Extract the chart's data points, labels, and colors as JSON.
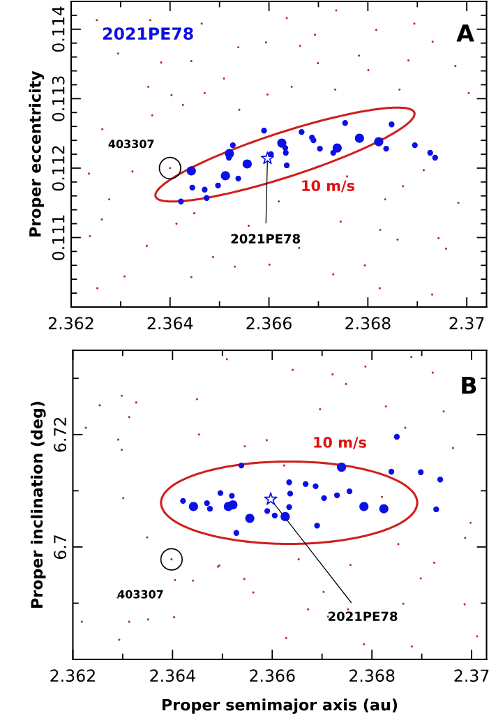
{
  "chart_data": [
    {
      "type": "scatter",
      "title": "2021PE78",
      "ylabel": "Proper eccentricity",
      "xlim": [
        2.362,
        2.3704
      ],
      "ylim": [
        0.11,
        0.1144
      ],
      "xticks": [
        2.362,
        {
          "value": 2.363,
          "label": null
        },
        2.364,
        {
          "value": 2.365,
          "label": null
        },
        2.366,
        {
          "value": 2.367,
          "label": null
        },
        2.368,
        {
          "value": 2.369,
          "label": null
        },
        2.37
      ],
      "yticks": [
        {
          "value": 0.1102,
          "label": null
        },
        {
          "value": 0.1104,
          "label": null
        },
        {
          "value": 0.1106,
          "label": null
        },
        {
          "value": 0.1108,
          "label": null
        },
        0.111,
        {
          "value": 0.1112,
          "label": null
        },
        {
          "value": 0.1114,
          "label": null
        },
        {
          "value": 0.1116,
          "label": null
        },
        {
          "value": 0.1118,
          "label": null
        },
        0.112,
        {
          "value": 0.1122,
          "label": null
        },
        {
          "value": 0.1124,
          "label": null
        },
        {
          "value": 0.1126,
          "label": null
        },
        {
          "value": 0.1128,
          "label": null
        },
        0.113,
        {
          "value": 0.1132,
          "label": null
        },
        {
          "value": 0.1134,
          "label": null
        },
        {
          "value": 0.1136,
          "label": null
        },
        {
          "value": 0.1138,
          "label": null
        },
        0.114,
        {
          "value": 0.1142,
          "label": null
        }
      ],
      "series": [
        {
          "marker": "circle",
          "color": "#b03030",
          "x": [
            2.36252,
            2.3636,
            2.36464,
            2.36295,
            2.36382,
            2.36443,
            2.36538,
            2.36594,
            2.36509,
            2.36356,
            2.36403,
            2.3647,
            2.36597,
            2.36426,
            2.36364,
            2.36263,
            2.3654,
            2.36636,
            2.36736,
            2.36693,
            2.36663,
            2.36699,
            2.36782,
            2.36817,
            2.36894,
            2.36801,
            2.36864,
            2.36882,
            2.36931,
            2.36977,
            2.37004,
            2.36646,
            2.36734,
            2.36236,
            2.36324,
            2.36277,
            2.36262,
            2.36238,
            2.36353,
            2.36413,
            2.36449,
            2.36487,
            2.36443,
            2.36308,
            2.36253,
            2.36531,
            2.36601,
            2.36661,
            2.3662,
            2.36559,
            2.36758,
            2.36745,
            2.3673,
            2.36794,
            2.36825,
            2.36835,
            2.36871,
            2.3686,
            2.36824,
            2.36913,
            2.36943,
            2.36983,
            2.3693,
            2.36958,
            2.364
          ],
          "values": [
            0.11413,
            0.11413,
            0.11408,
            0.11365,
            0.11352,
            0.11354,
            0.11374,
            0.11381,
            0.11329,
            0.11317,
            0.11305,
            0.11308,
            0.11306,
            0.11291,
            0.11276,
            0.11256,
            0.11284,
            0.11416,
            0.11427,
            0.11392,
            0.11376,
            0.11351,
            0.11362,
            0.11399,
            0.11408,
            0.11341,
            0.11313,
            0.11355,
            0.11382,
            0.11347,
            0.11308,
            0.11317,
            0.11313,
            0.11192,
            0.11195,
            0.11155,
            0.11126,
            0.11102,
            0.11088,
            0.1112,
            0.11135,
            0.11072,
            0.11043,
            0.11044,
            0.11027,
            0.11058,
            0.11061,
            0.11085,
            0.11152,
            0.11117,
            0.11188,
            0.11123,
            0.11047,
            0.1106,
            0.11111,
            0.11155,
            0.11174,
            0.11097,
            0.11027,
            0.11197,
            0.11099,
            0.1115,
            0.11018,
            0.11084,
            0.112
          ]
        },
        {
          "type": "bubble",
          "color": "#0a10e6",
          "x": [
            2.3659,
            2.36666,
            2.36687,
            2.3669,
            2.36754,
            2.36783,
            2.36822,
            2.36848,
            2.36895,
            2.36626,
            2.36633,
            2.36738,
            2.36703,
            2.36837,
            2.36527,
            2.3652,
            2.36519,
            2.36604,
            2.36634,
            2.3673,
            2.36926,
            2.36936,
            2.36443,
            2.36556,
            2.36636,
            2.36512,
            2.36538,
            2.36445,
            2.3647,
            2.36497,
            2.36474,
            2.36422
          ],
          "values": [
            0.11254,
            0.11252,
            0.11244,
            0.1124,
            0.11265,
            0.11243,
            0.11238,
            0.11263,
            0.11233,
            0.11236,
            0.11229,
            0.11229,
            0.11228,
            0.11228,
            0.11233,
            0.11221,
            0.11215,
            0.1122,
            0.11222,
            0.11222,
            0.11222,
            0.11215,
            0.11196,
            0.11206,
            0.11204,
            0.11189,
            0.11185,
            0.11172,
            0.11169,
            0.11175,
            0.11157,
            0.11152
          ],
          "sizes": [
            0.4,
            0.4,
            0.4,
            0.4,
            0.4,
            1,
            1,
            0.4,
            0.4,
            1,
            0.4,
            1,
            0.4,
            0.4,
            0.4,
            1,
            0.4,
            0.4,
            0.4,
            0.4,
            0.4,
            0.4,
            1,
            1,
            0.4,
            1,
            0.4,
            0.4,
            0.4,
            0.4,
            0.4,
            0.4
          ]
        },
        {
          "marker": "star",
          "color": "#0a10e6",
          "x": [
            2.36597
          ],
          "values": [
            0.11214
          ]
        }
      ],
      "annotations": [
        "A",
        {
          "text": "403307",
          "x": 2.364,
          "y": 0.112
        },
        {
          "text": "2021PE78",
          "x": 2.36597,
          "y": 0.11214
        },
        "10 m/s"
      ]
    },
    {
      "type": "scatter",
      "xlabel": "Proper semimajor axis (au)",
      "ylabel": "Proper inclination (deg)",
      "xlim": [
        2.362,
        2.3703
      ],
      "ylim": [
        6.68,
        6.735
      ],
      "xticks": [
        2.362,
        {
          "value": 2.363,
          "label": null
        },
        2.364,
        {
          "value": 2.365,
          "label": null
        },
        2.366,
        {
          "value": 2.367,
          "label": null
        },
        2.368,
        {
          "value": 2.369,
          "label": null
        },
        2.37
      ],
      "yticks": [
        {
          "value": 6.69,
          "label": null
        },
        6.7,
        {
          "value": 6.71,
          "label": null
        },
        6.72,
        {
          "value": 6.73,
          "label": null
        }
      ],
      "series": [
        {
          "marker": "circle",
          "color": "#b03030",
          "x": [
            2.36298,
            2.36313,
            2.36327,
            2.36254,
            2.36226,
            2.36291,
            2.36298,
            2.36301,
            2.36349,
            2.36403,
            2.36351,
            2.36313,
            2.36218,
            2.36293,
            2.3629,
            2.36405,
            2.36441,
            2.36494,
            2.36544,
            2.36545,
            2.36453,
            2.36449,
            2.36509,
            2.36641,
            2.36696,
            2.36721,
            2.36748,
            2.36787,
            2.36828,
            2.36879,
            2.36922,
            2.36944,
            2.36867,
            2.36963,
            2.36987,
            2.36998,
            2.36925,
            2.36898,
            2.36863,
            2.3688,
            2.36986,
            2.37011,
            2.36784,
            2.36628,
            2.36672,
            2.36712,
            2.36752,
            2.36653,
            2.36757,
            2.36853,
            2.36703,
            2.36562,
            2.36491,
            2.36589,
            2.36624,
            2.3682,
            2.36398
          ],
          "values": [
            6.7269,
            6.7231,
            6.7257,
            6.7252,
            6.7212,
            6.7191,
            6.7173,
            6.7087,
            6.7017,
            6.6875,
            6.6871,
            6.6867,
            6.6867,
            6.6835,
            6.691,
            6.6941,
            6.694,
            6.6967,
            6.6943,
            6.7179,
            6.72,
            6.7263,
            6.7334,
            6.7315,
            6.7245,
            6.7307,
            6.729,
            6.7321,
            6.725,
            6.7338,
            6.731,
            6.7241,
            6.7212,
            6.7176,
            6.7016,
            6.7043,
            6.6972,
            6.6944,
            6.6899,
            6.6823,
            6.6898,
            6.6841,
            6.6827,
            6.6838,
            6.6889,
            6.6876,
            6.6889,
            6.6978,
            6.6968,
            6.7005,
            6.692,
            6.6919,
            6.6965,
            6.719,
            6.7145,
            6.7089,
            6.6978
          ]
        },
        {
          "type": "bubble",
          "color": "#0a10e6",
          "x": [
            2.36421,
            2.36442,
            2.36469,
            2.36475,
            2.36496,
            2.36512,
            2.36521,
            2.36519,
            2.36538,
            2.36528,
            2.36555,
            2.3659,
            2.36605,
            2.36626,
            2.36634,
            2.36636,
            2.36634,
            2.36667,
            2.36687,
            2.3669,
            2.36704,
            2.3673,
            2.36739,
            2.36755,
            2.36784,
            2.36824,
            2.36839,
            2.3685,
            2.36898,
            2.36929,
            2.36937
          ],
          "values": [
            6.7082,
            6.7072,
            6.7078,
            6.7068,
            6.7096,
            6.7072,
            6.7075,
            6.7091,
            6.7145,
            6.7025,
            6.7051,
            6.7064,
            6.7056,
            6.7054,
            6.7071,
            6.7095,
            6.7115,
            6.7112,
            6.7108,
            6.7038,
            6.7087,
            6.7092,
            6.7142,
            6.7099,
            6.7072,
            6.7068,
            6.7134,
            6.7196,
            6.7133,
            6.7067,
            6.712
          ],
          "sizes": [
            0.4,
            1,
            0.4,
            0.4,
            0.4,
            1,
            1,
            0.4,
            0.4,
            0.4,
            1,
            0.4,
            0.4,
            1,
            0.4,
            0.4,
            0.4,
            0.4,
            0.4,
            0.4,
            0.4,
            0.4,
            1,
            0.4,
            1,
            1,
            0.4,
            0.4,
            0.4,
            0.4,
            0.4
          ]
        },
        {
          "marker": "star",
          "color": "#0a10e6",
          "x": [
            2.36597
          ],
          "values": [
            6.7085
          ]
        }
      ],
      "annotations": [
        "B",
        {
          "text": "403307",
          "x": 2.36398,
          "y": 6.6978
        },
        {
          "text": "2021PE78",
          "x": 2.36597,
          "y": 6.7085
        },
        "10 m/s"
      ]
    }
  ]
}
